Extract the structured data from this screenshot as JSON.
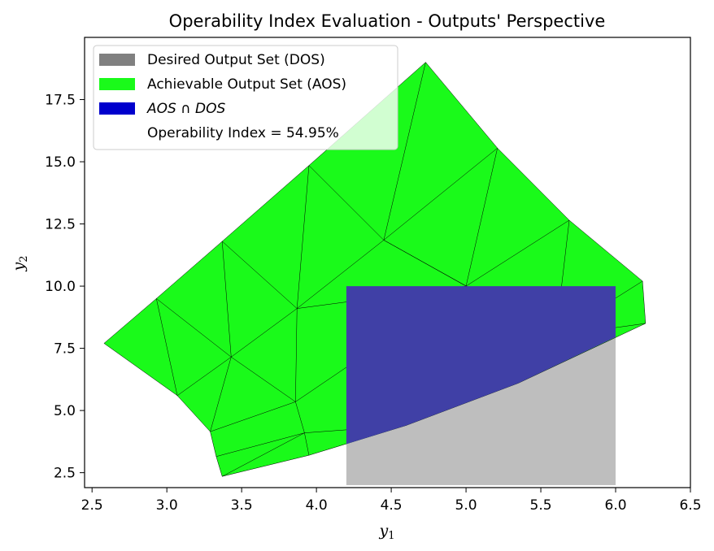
{
  "chart_data": {
    "type": "area",
    "title": "Operability Index Evaluation - Outputs' Perspective",
    "xlabel": "y1",
    "ylabel": "y2",
    "xlim": [
      2.45,
      6.5
    ],
    "ylim": [
      1.9,
      20.0
    ],
    "x_ticks": [
      "2.5",
      "3.0",
      "3.5",
      "4.0",
      "4.5",
      "5.0",
      "5.5",
      "6.0",
      "6.5"
    ],
    "x_tick_values": [
      2.5,
      3.0,
      3.5,
      4.0,
      4.5,
      5.0,
      5.5,
      6.0,
      6.5
    ],
    "y_ticks": [
      "2.5",
      "5.0",
      "7.5",
      "10.0",
      "12.5",
      "15.0",
      "17.5"
    ],
    "y_tick_values": [
      2.5,
      5.0,
      7.5,
      10.0,
      12.5,
      15.0,
      17.5
    ],
    "grid": false,
    "legend_position": "upper-left",
    "colors": {
      "dos": "#bebebe",
      "dos_legend": "#808080",
      "aos": "#1afa1a",
      "intersection": "#4040a6",
      "intersection_legend": "#0000cd",
      "mesh": "#000000"
    },
    "legend": [
      {
        "label": "Desired Output Set (DOS)",
        "swatch": "dos_legend"
      },
      {
        "label": "Achievable Output Set (AOS)",
        "swatch": "aos"
      },
      {
        "label": "AOS ∩ DOS",
        "swatch": "intersection_legend",
        "italic": true
      },
      {
        "label": "Operability Index = 54.95%",
        "swatch": null
      }
    ],
    "operability_index": "54.95%",
    "dos": {
      "x_range": [
        4.2,
        6.0
      ],
      "y_range": [
        2.0,
        10.0
      ]
    },
    "aos_boundary": [
      [
        2.58,
        7.7
      ],
      [
        2.93,
        9.5
      ],
      [
        3.37,
        11.8
      ],
      [
        3.95,
        14.85
      ],
      [
        4.73,
        19.0
      ],
      [
        5.21,
        15.55
      ],
      [
        5.69,
        12.65
      ],
      [
        6.18,
        10.2
      ],
      [
        6.2,
        8.5
      ],
      [
        5.35,
        6.1
      ],
      [
        4.6,
        4.4
      ],
      [
        4.2,
        3.65
      ],
      [
        3.95,
        3.2
      ],
      [
        3.37,
        2.35
      ],
      [
        3.33,
        3.15
      ],
      [
        3.29,
        4.15
      ],
      [
        3.07,
        5.6
      ]
    ],
    "mesh_nodes": [
      [
        2.58,
        7.7
      ],
      [
        2.93,
        9.5
      ],
      [
        3.37,
        11.8
      ],
      [
        3.95,
        14.85
      ],
      [
        4.73,
        19.0
      ],
      [
        5.21,
        15.55
      ],
      [
        5.69,
        12.65
      ],
      [
        6.18,
        10.2
      ],
      [
        6.2,
        8.5
      ],
      [
        5.35,
        6.1
      ],
      [
        4.6,
        4.4
      ],
      [
        3.95,
        3.2
      ],
      [
        3.37,
        2.35
      ],
      [
        3.33,
        3.15
      ],
      [
        3.29,
        4.15
      ],
      [
        3.07,
        5.6
      ],
      [
        3.43,
        7.15
      ],
      [
        3.87,
        9.1
      ],
      [
        4.45,
        11.85
      ],
      [
        3.86,
        5.35
      ],
      [
        3.92,
        4.1
      ],
      [
        5.0,
        10.0
      ],
      [
        5.6,
        8.0
      ]
    ],
    "mesh_edges": [
      [
        0,
        1
      ],
      [
        1,
        2
      ],
      [
        2,
        3
      ],
      [
        3,
        4
      ],
      [
        4,
        5
      ],
      [
        5,
        6
      ],
      [
        6,
        7
      ],
      [
        7,
        8
      ],
      [
        8,
        9
      ],
      [
        9,
        10
      ],
      [
        10,
        11
      ],
      [
        11,
        12
      ],
      [
        12,
        13
      ],
      [
        13,
        14
      ],
      [
        14,
        15
      ],
      [
        15,
        0
      ],
      [
        1,
        16
      ],
      [
        1,
        15
      ],
      [
        15,
        16
      ],
      [
        14,
        16
      ],
      [
        2,
        16
      ],
      [
        2,
        17
      ],
      [
        16,
        17
      ],
      [
        3,
        17
      ],
      [
        3,
        18
      ],
      [
        17,
        18
      ],
      [
        4,
        18
      ],
      [
        5,
        18
      ],
      [
        16,
        19
      ],
      [
        14,
        19
      ],
      [
        17,
        19
      ],
      [
        19,
        20
      ],
      [
        11,
        20
      ],
      [
        13,
        20
      ],
      [
        12,
        20
      ],
      [
        18,
        21
      ],
      [
        5,
        21
      ],
      [
        6,
        21
      ],
      [
        21,
        22
      ],
      [
        6,
        22
      ],
      [
        7,
        22
      ],
      [
        8,
        22
      ],
      [
        9,
        22
      ],
      [
        17,
        21
      ],
      [
        19,
        21
      ],
      [
        20,
        10
      ],
      [
        18,
        22
      ]
    ],
    "intersection_polygon": [
      [
        4.2,
        10.0
      ],
      [
        6.0,
        10.0
      ],
      [
        6.0,
        7.95
      ],
      [
        5.35,
        6.1
      ],
      [
        4.6,
        4.4
      ],
      [
        4.2,
        3.65
      ]
    ]
  }
}
